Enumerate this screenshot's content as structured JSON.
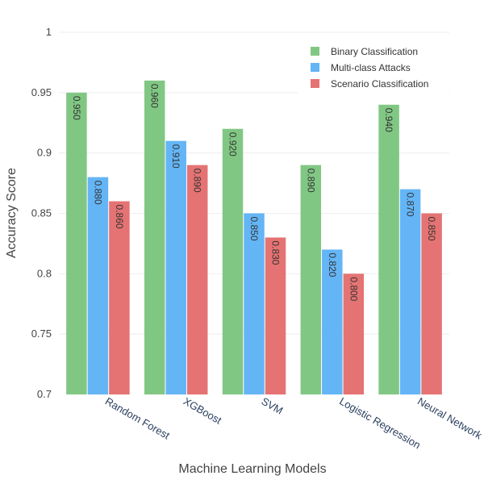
{
  "chart_data": {
    "type": "bar",
    "categories": [
      "Random Forest",
      "XGBoost",
      "SVM",
      "Logistic Regression",
      "Neural Network"
    ],
    "series": [
      {
        "name": "Binary Classification",
        "values": [
          0.95,
          0.96,
          0.92,
          0.89,
          0.94
        ],
        "color": "#81c784"
      },
      {
        "name": "Multi-class Attacks",
        "values": [
          0.88,
          0.91,
          0.85,
          0.82,
          0.87
        ],
        "color": "#64b5f6"
      },
      {
        "name": "Scenario Classification",
        "values": [
          0.86,
          0.89,
          0.83,
          0.8,
          0.85
        ],
        "color": "#e57373"
      }
    ],
    "title": "",
    "xlabel": "Machine Learning Models",
    "ylabel": "Accuracy Score",
    "ylim": [
      0.7,
      1.0
    ],
    "yticks": [
      "0.7",
      "0.75",
      "0.8",
      "0.85",
      "0.9",
      "0.95",
      "1"
    ],
    "data_label_format": "3 decimals, rotated 90°",
    "grid": true,
    "legend_position": "top-right"
  }
}
